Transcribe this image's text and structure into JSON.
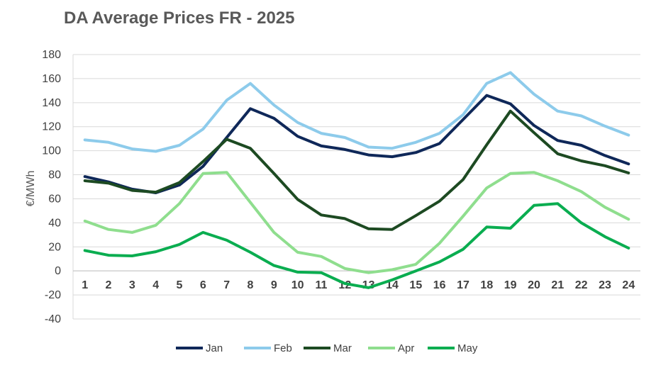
{
  "chart_data": {
    "type": "line",
    "title": "DA Average Prices FR - 2025",
    "ylabel": "€/MWh",
    "xlabel": "",
    "ylim": [
      -40,
      180
    ],
    "yticks": [
      -40,
      -20,
      0,
      20,
      40,
      60,
      80,
      100,
      120,
      140,
      160,
      180
    ],
    "grid": "horizontal",
    "legend_position": "bottom",
    "x": [
      1,
      2,
      3,
      4,
      5,
      6,
      7,
      8,
      9,
      10,
      11,
      12,
      13,
      14,
      15,
      16,
      17,
      18,
      19,
      20,
      21,
      22,
      23,
      24
    ],
    "series": [
      {
        "name": "Jan",
        "color": "#0f2859",
        "values": [
          78.5,
          74,
          68,
          65,
          71.5,
          87,
          111,
          135,
          127,
          112,
          104,
          101,
          96.5,
          95,
          98.5,
          106,
          126,
          146,
          139,
          121,
          108.5,
          104.5,
          96,
          89
        ]
      },
      {
        "name": "Feb",
        "color": "#8dcbeb",
        "values": [
          109,
          107,
          101.5,
          99.5,
          104.5,
          118,
          142,
          156,
          138,
          123.5,
          114.5,
          111,
          103,
          102,
          107,
          114.5,
          130,
          156,
          165,
          147,
          133,
          129,
          120.5,
          113
        ]
      },
      {
        "name": "Mar",
        "color": "#1d4a22",
        "values": [
          75,
          73,
          67,
          65.5,
          73.5,
          91,
          109.5,
          102,
          81,
          59.5,
          46.5,
          43.5,
          35,
          34.5,
          46,
          58,
          76,
          105,
          133,
          115,
          97.5,
          91.5,
          87.5,
          81.5
        ]
      },
      {
        "name": "Apr",
        "color": "#8fde8e",
        "values": [
          41.5,
          34.5,
          32,
          38,
          56,
          81,
          82,
          57,
          32,
          15.5,
          12,
          2,
          -1.5,
          1,
          5.5,
          23,
          45.5,
          69,
          81,
          82,
          75,
          66,
          53,
          43
        ]
      },
      {
        "name": "May",
        "color": "#0aad50",
        "values": [
          17,
          13,
          12.5,
          16,
          22,
          32,
          25.5,
          15.5,
          4.5,
          -1,
          -1.5,
          -10.5,
          -14,
          -7.5,
          0,
          7.5,
          18,
          36.5,
          35.5,
          54.5,
          56,
          40,
          28.5,
          19
        ]
      }
    ]
  }
}
